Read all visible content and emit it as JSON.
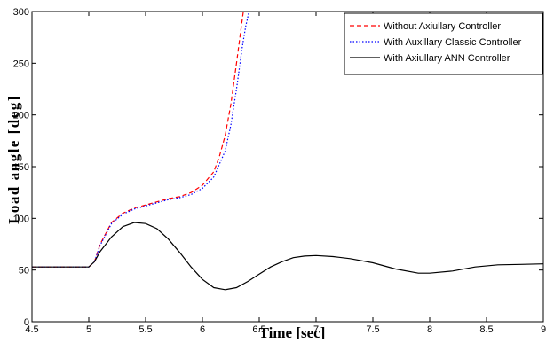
{
  "chart_data": {
    "type": "line",
    "xlabel": "Time [sec]",
    "ylabel": "Load angle  [deg]",
    "xlim": [
      4.5,
      9
    ],
    "ylim": [
      0,
      300
    ],
    "x_ticks": [
      "4.5",
      "5",
      "5.5",
      "6",
      "6.5",
      "7",
      "7.5",
      "8",
      "8.5",
      "9"
    ],
    "y_ticks": [
      "0",
      "50",
      "100",
      "150",
      "200",
      "250",
      "300"
    ],
    "grid": false,
    "legend_position": "top-right",
    "series": [
      {
        "name": "Without Axiullary Controller",
        "color": "#ff0000",
        "style": "dashed",
        "x": [
          4.5,
          5.0,
          5.05,
          5.1,
          5.2,
          5.3,
          5.4,
          5.5,
          5.6,
          5.7,
          5.8,
          5.9,
          6.0,
          6.1,
          6.15,
          6.2,
          6.25,
          6.3,
          6.33,
          6.36
        ],
        "y": [
          53,
          53,
          58,
          75,
          96,
          105,
          110,
          113,
          116,
          119,
          121,
          125,
          132,
          145,
          160,
          180,
          210,
          250,
          275,
          300
        ]
      },
      {
        "name": "With Auxillary Classic Controller",
        "color": "#0000ff",
        "style": "dotted",
        "x": [
          4.5,
          5.0,
          5.05,
          5.1,
          5.2,
          5.3,
          5.4,
          5.5,
          5.6,
          5.7,
          5.8,
          5.9,
          6.0,
          6.1,
          6.2,
          6.25,
          6.3,
          6.35,
          6.38,
          6.41
        ],
        "y": [
          53,
          53,
          58,
          74,
          95,
          104,
          109,
          112,
          115,
          118,
          120,
          123,
          129,
          140,
          165,
          190,
          225,
          265,
          285,
          300
        ]
      },
      {
        "name": "With Axiullary ANN Controller",
        "color": "#000000",
        "style": "solid",
        "x": [
          4.5,
          5.0,
          5.05,
          5.1,
          5.2,
          5.3,
          5.4,
          5.5,
          5.6,
          5.7,
          5.8,
          5.9,
          6.0,
          6.1,
          6.2,
          6.3,
          6.4,
          6.5,
          6.6,
          6.7,
          6.8,
          6.9,
          7.0,
          7.15,
          7.3,
          7.5,
          7.7,
          7.9,
          8.0,
          8.2,
          8.4,
          8.6,
          8.8,
          9.0
        ],
        "y": [
          53,
          53,
          58,
          68,
          82,
          92,
          96,
          95,
          90,
          80,
          67,
          53,
          41,
          33,
          31,
          33,
          39,
          46,
          53,
          58,
          62,
          63.5,
          64,
          63,
          61,
          57,
          51,
          47,
          47,
          49,
          53,
          55,
          55.5,
          56
        ]
      }
    ]
  }
}
